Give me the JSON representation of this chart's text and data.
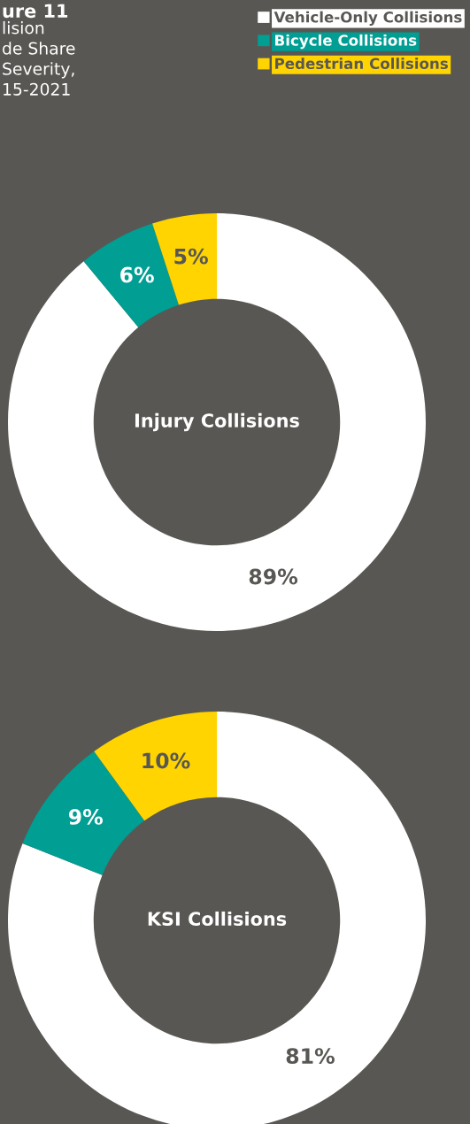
{
  "chart_data": [
    {
      "type": "donut",
      "title": "ure 11",
      "subtitle": "lision\nde Share\nSeverity,\n15-2021",
      "categories": [
        "Vehicle-Only Collisions",
        "Bicycle Collisions",
        "Pedestrian Collisions"
      ],
      "values": [
        89,
        6,
        5
      ],
      "value_labels": [
        "89%",
        "6%",
        "5%"
      ],
      "colors": [
        "#ffffff",
        "#009e93",
        "#ffd400"
      ],
      "legend": "top right",
      "annotations": [
        "Injury Collisions"
      ]
    },
    {
      "type": "donut",
      "categories": [
        null,
        null,
        null
      ],
      "values": [
        81,
        9,
        10
      ],
      "value_labels": [
        "81%",
        "9%",
        "10%"
      ],
      "colors": [
        "#ffffff",
        "#009e93",
        "#ffd400"
      ],
      "annotations": [
        "KSI Collisions"
      ]
    }
  ]
}
